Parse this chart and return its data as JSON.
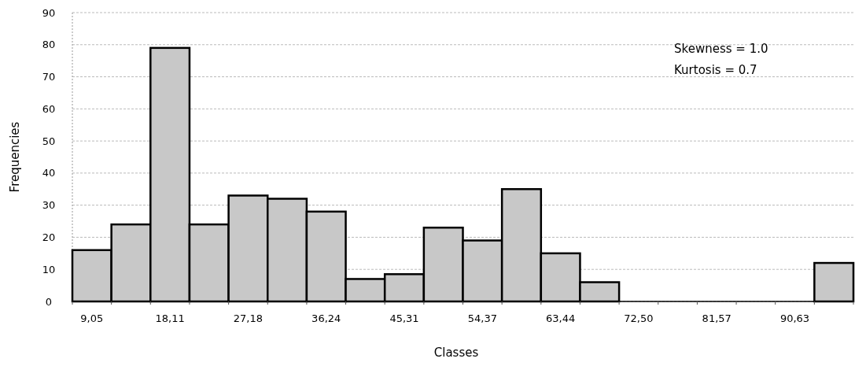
{
  "chart_data": {
    "type": "bar",
    "xlabel": "Classes",
    "ylabel": "Frequencies",
    "categories": [
      "9,05",
      null,
      "18,11",
      null,
      "27,18",
      null,
      "36,24",
      null,
      "45,31",
      null,
      "54,37",
      null,
      "63,44",
      null,
      "72,50",
      null,
      "81,57",
      null,
      "90,63",
      null
    ],
    "values": [
      16,
      24,
      79,
      24,
      33,
      32,
      28,
      7,
      8.5,
      23,
      19,
      35,
      15,
      6,
      0,
      0,
      0,
      0,
      0,
      12
    ],
    "color": "#c8c8c8",
    "ylim": [
      0,
      90
    ],
    "yticks": [
      0,
      10,
      20,
      30,
      40,
      50,
      60,
      70,
      80,
      90
    ],
    "grid": "y",
    "annotations": [
      "Skewness = 1.0",
      "Kurtosis = 0.7"
    ]
  }
}
